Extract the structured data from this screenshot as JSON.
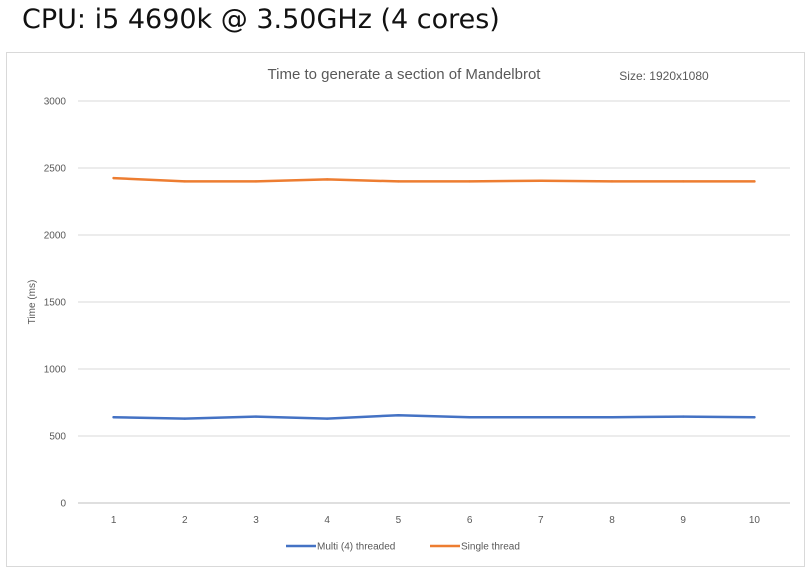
{
  "heading": "CPU: i5 4690k @ 3.50GHz (4 cores)",
  "chart_data": {
    "type": "line",
    "title": "Time to generate a section of Mandelbrot",
    "subtitle": "Size: 1920x1080",
    "xlabel": "",
    "ylabel": "Time (ms)",
    "ylim": [
      0,
      3000
    ],
    "yticks": [
      0,
      500,
      1000,
      1500,
      2000,
      2500,
      3000
    ],
    "grid": true,
    "legend_position": "bottom",
    "categories": [
      "1",
      "2",
      "3",
      "4",
      "5",
      "6",
      "7",
      "8",
      "9",
      "10"
    ],
    "series": [
      {
        "name": "Multi (4) threaded",
        "color": "#4472c4",
        "values": [
          640,
          630,
          645,
          630,
          655,
          640,
          640,
          640,
          645,
          640
        ]
      },
      {
        "name": "Single thread",
        "color": "#ed7d31",
        "values": [
          2425,
          2400,
          2400,
          2415,
          2400,
          2400,
          2405,
          2400,
          2400,
          2400
        ]
      }
    ]
  }
}
